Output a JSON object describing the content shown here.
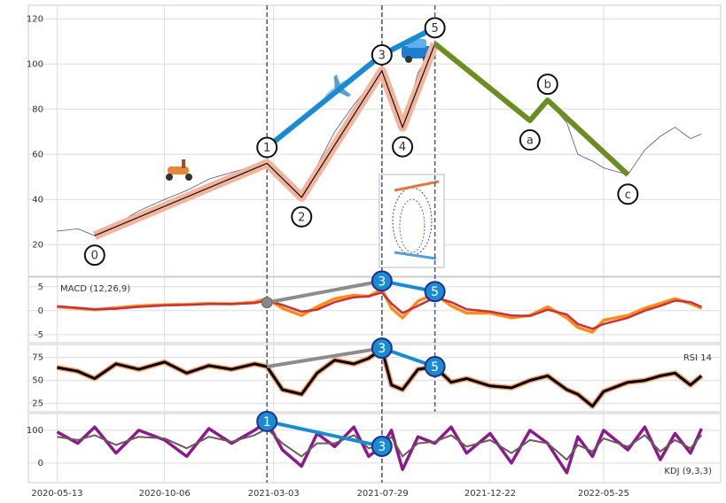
{
  "chart_data": {
    "type": "line",
    "xlim": [
      "2020-04-04",
      "2022-10-31"
    ],
    "xticks": [
      "2020-05-13",
      "2020-10-06",
      "2021-03-03",
      "2021-07-29",
      "2021-12-22",
      "2022-05-25"
    ],
    "grid": true,
    "x": [
      "2020-05-13",
      "2020-06-10",
      "2020-07-03",
      "2020-08-01",
      "2020-09-01",
      "2020-10-06",
      "2020-11-05",
      "2020-12-05",
      "2021-01-05",
      "2021-02-05",
      "2021-02-22",
      "2021-03-15",
      "2021-04-10",
      "2021-05-01",
      "2021-05-25",
      "2021-06-20",
      "2021-07-10",
      "2021-07-28",
      "2021-08-10",
      "2021-08-25",
      "2021-09-15",
      "2021-10-08",
      "2021-10-30",
      "2021-11-20",
      "2021-12-22",
      "2022-01-20",
      "2022-02-14",
      "2022-03-10",
      "2022-04-05",
      "2022-04-20",
      "2022-05-10",
      "2022-05-25",
      "2022-06-27",
      "2022-07-20",
      "2022-08-10",
      "2022-08-30",
      "2022-09-20",
      "2022-10-05"
    ],
    "panels": [
      {
        "ylim": [
          6,
          126
        ],
        "yticks": [
          20,
          40,
          60,
          80,
          100,
          120
        ],
        "series": [
          {
            "color": "#4a5a6e",
            "values": [
              26,
              27,
              24,
              29,
              35,
              40,
              44,
              49,
              52,
              55,
              56,
              47,
              41,
              55,
              70,
              82,
              90,
              97,
              82,
              72,
              96,
              109,
              103,
              98,
              88,
              82,
              75,
              84,
              74,
              60,
              57,
              54,
              51,
              62,
              68,
              72,
              67,
              69
            ]
          }
        ]
      },
      {
        "label": "MACD (12,26,9)",
        "ylim": [
          -6.7,
          7
        ],
        "yticks": [
          -5,
          0,
          5
        ],
        "series": [
          {
            "color": "#ff8c1a",
            "values": [
              0.8,
              0.5,
              0.2,
              0.6,
              1.0,
              1.2,
              1.3,
              1.5,
              1.4,
              1.8,
              2.5,
              0.5,
              -1.0,
              0.8,
              2.5,
              3.2,
              3.0,
              4.5,
              0.5,
              -1.5,
              2.0,
              3.5,
              1.0,
              -0.5,
              -0.5,
              -1.5,
              -1.0,
              0.8,
              -1.5,
              -3.5,
              -4.5,
              -2.0,
              -1.0,
              0.5,
              1.5,
              2.5,
              1.5,
              0.5
            ]
          },
          {
            "color": "#c8323c",
            "values": [
              0.9,
              0.6,
              0.3,
              0.4,
              0.8,
              1.1,
              1.2,
              1.4,
              1.4,
              1.6,
              2.1,
              1.2,
              -0.2,
              0.2,
              1.8,
              2.8,
              3.0,
              3.8,
              1.5,
              -0.5,
              1.0,
              2.8,
              1.8,
              0.3,
              -0.2,
              -1.0,
              -1.1,
              0.2,
              -0.8,
              -2.8,
              -3.8,
              -2.8,
              -1.5,
              0,
              1.0,
              2.1,
              1.8,
              0.8
            ]
          }
        ],
        "divergence": {
          "colors": [
            "#8c8c8c",
            "#1a8bd0"
          ],
          "points": [
            {
              "label": null,
              "x": "2021-02-22",
              "value": 1.7
            },
            {
              "label": "3",
              "x": "2021-07-28",
              "value": 6.2
            },
            {
              "label": "5",
              "x": "2021-10-08",
              "value": 4
            }
          ]
        }
      },
      {
        "label": "RSI 14",
        "ylim": [
          16,
          89
        ],
        "yticks": [
          25,
          50,
          75
        ],
        "series": [
          {
            "color": "#000000",
            "values": [
              64,
              60,
              52,
              68,
              62,
              70,
              58,
              66,
              62,
              68,
              65,
              40,
              35,
              58,
              72,
              68,
              74,
              84,
              45,
              40,
              62,
              65,
              48,
              52,
              44,
              42,
              50,
              55,
              40,
              35,
              22,
              38,
              48,
              50,
              55,
              58,
              45,
              55
            ]
          }
        ],
        "divergence": {
          "colors": [
            "#8c8c8c",
            "#1a8bd0"
          ],
          "points": [
            {
              "label": null,
              "x": "2021-02-22",
              "value": 65
            },
            {
              "label": "3",
              "x": "2021-07-28",
              "value": 85
            },
            {
              "label": "5",
              "x": "2021-10-08",
              "value": 65
            }
          ]
        }
      },
      {
        "label": "KDJ (9,3,3)",
        "ylim": [
          -60,
          151
        ],
        "yticks": [
          0,
          100
        ],
        "series": [
          {
            "color": "#8b1a8b",
            "values": [
              95,
              60,
              110,
              30,
              100,
              70,
              20,
              105,
              60,
              100,
              127,
              40,
              -10,
              90,
              50,
              110,
              20,
              51,
              100,
              -20,
              80,
              60,
              110,
              30,
              90,
              0,
              100,
              60,
              -30,
              80,
              20,
              100,
              40,
              110,
              10,
              90,
              30,
              105
            ]
          },
          {
            "color": "#6e5a5a",
            "values": [
              80,
              70,
              85,
              55,
              80,
              75,
              45,
              80,
              65,
              85,
              105,
              60,
              20,
              60,
              60,
              85,
              45,
              55,
              80,
              20,
              60,
              65,
              85,
              50,
              70,
              30,
              70,
              60,
              10,
              55,
              35,
              75,
              50,
              85,
              35,
              70,
              45,
              85
            ]
          }
        ],
        "divergence": {
          "colors": [
            "#1a8bd0"
          ],
          "points": [
            {
              "label": "1",
              "x": "2021-02-22",
              "value": 127
            },
            {
              "label": "3",
              "x": "2021-07-28",
              "value": 51
            }
          ]
        }
      }
    ],
    "waves": [
      {
        "label": "0",
        "x": "2020-07-03",
        "value": 24
      },
      {
        "label": "1",
        "x": "2021-02-22",
        "value": 56
      },
      {
        "label": "2",
        "x": "2021-04-10",
        "value": 41
      },
      {
        "label": "3",
        "x": "2021-07-28",
        "value": 97
      },
      {
        "label": "4",
        "x": "2021-08-25",
        "value": 72
      },
      {
        "label": "5",
        "x": "2021-10-08",
        "value": 109
      },
      {
        "label": "a",
        "x": "2022-02-14",
        "value": 75
      },
      {
        "label": "b",
        "x": "2022-03-10",
        "value": 84
      },
      {
        "label": "c",
        "x": "2022-06-27",
        "value": 51
      }
    ]
  }
}
